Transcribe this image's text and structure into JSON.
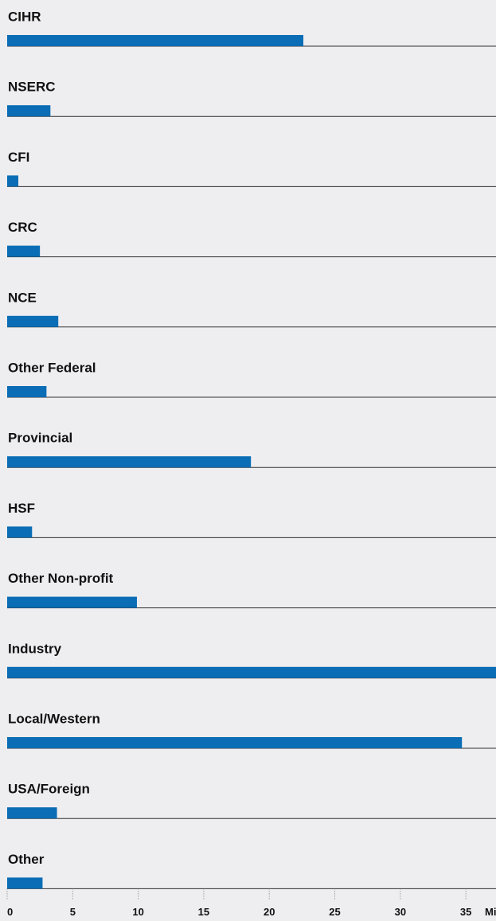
{
  "chart_data": {
    "type": "barh",
    "categories": [
      "CIHR",
      "NSERC",
      "CFI",
      "CRC",
      "NCE",
      "Other Federal",
      "Provincial",
      "HSF",
      "Other Non-profit",
      "Industry",
      "Local/Western",
      "USA/Foreign",
      "Other"
    ],
    "values": [
      22.6,
      3.3,
      0.85,
      2.5,
      3.9,
      3.0,
      18.6,
      1.9,
      9.9,
      37.3,
      34.7,
      3.8,
      2.7
    ],
    "color": "#0a6db5",
    "x_label": "Mi",
    "xlim": [
      0,
      37.3
    ],
    "xticks": [
      0,
      5,
      10,
      15,
      20,
      25,
      30,
      35
    ]
  }
}
